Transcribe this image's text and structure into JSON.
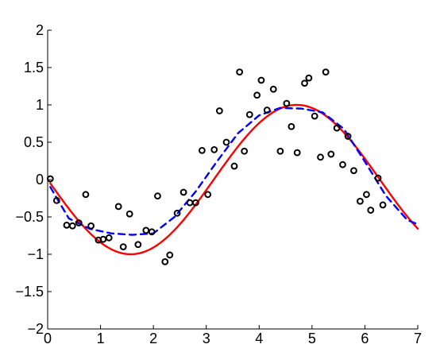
{
  "chart_data": {
    "type": "scatter",
    "xlim": [
      0,
      7
    ],
    "ylim": [
      -2,
      2
    ],
    "x_ticks": [
      "0",
      "1",
      "2",
      "3",
      "4",
      "5",
      "6",
      "7"
    ],
    "y_ticks": [
      "2",
      "1.5",
      "1",
      "0.5",
      "0",
      "−0.5",
      "−1",
      "−1.5",
      "−2"
    ],
    "grid": false,
    "series": [
      {
        "kind": "scatter",
        "color": "#000000",
        "marker": "open-circle",
        "points": [
          [
            0.05,
            0.01
          ],
          [
            0.17,
            -0.28
          ],
          [
            0.36,
            -0.61
          ],
          [
            0.47,
            -0.62
          ],
          [
            0.59,
            -0.58
          ],
          [
            0.72,
            -0.2
          ],
          [
            0.82,
            -0.62
          ],
          [
            0.96,
            -0.81
          ],
          [
            1.05,
            -0.8
          ],
          [
            1.16,
            -0.78
          ],
          [
            1.34,
            -0.36
          ],
          [
            1.43,
            -0.9
          ],
          [
            1.55,
            -0.46
          ],
          [
            1.71,
            -0.87
          ],
          [
            1.86,
            -0.68
          ],
          [
            1.97,
            -0.7
          ],
          [
            2.08,
            -0.22
          ],
          [
            2.22,
            -1.1
          ],
          [
            2.31,
            -1.01
          ],
          [
            2.45,
            -0.45
          ],
          [
            2.57,
            -0.17
          ],
          [
            2.69,
            -0.31
          ],
          [
            2.8,
            -0.31
          ],
          [
            2.92,
            0.39
          ],
          [
            3.03,
            -0.2
          ],
          [
            3.15,
            0.4
          ],
          [
            3.25,
            0.92
          ],
          [
            3.38,
            0.5
          ],
          [
            3.53,
            0.18
          ],
          [
            3.63,
            1.44
          ],
          [
            3.72,
            0.38
          ],
          [
            3.82,
            0.87
          ],
          [
            3.96,
            1.13
          ],
          [
            4.04,
            1.33
          ],
          [
            4.15,
            0.93
          ],
          [
            4.27,
            1.21
          ],
          [
            4.4,
            0.38
          ],
          [
            4.52,
            1.02
          ],
          [
            4.61,
            0.71
          ],
          [
            4.72,
            0.36
          ],
          [
            4.86,
            1.29
          ],
          [
            4.94,
            1.36
          ],
          [
            5.05,
            0.85
          ],
          [
            5.16,
            0.3
          ],
          [
            5.26,
            1.44
          ],
          [
            5.36,
            0.34
          ],
          [
            5.47,
            0.69
          ],
          [
            5.58,
            0.2
          ],
          [
            5.68,
            0.58
          ],
          [
            5.79,
            0.12
          ],
          [
            5.91,
            -0.29
          ],
          [
            6.03,
            -0.2
          ],
          [
            6.11,
            -0.41
          ],
          [
            6.25,
            0.02
          ],
          [
            6.34,
            -0.34
          ]
        ]
      },
      {
        "kind": "line",
        "color": "#ff0000",
        "style": "solid",
        "function": "sin",
        "x_range": [
          0.05,
          7
        ],
        "points": []
      },
      {
        "kind": "line",
        "color": "#0000ff",
        "style": "dashed",
        "function": "fit",
        "x_range": [
          0.05,
          7
        ],
        "points": [
          [
            0.05,
            -0.1
          ],
          [
            0.4,
            -0.52
          ],
          [
            0.8,
            -0.66
          ],
          [
            1.2,
            -0.72
          ],
          [
            1.6,
            -0.74
          ],
          [
            2.0,
            -0.72
          ],
          [
            2.4,
            -0.5
          ],
          [
            2.8,
            -0.16
          ],
          [
            3.2,
            0.24
          ],
          [
            3.6,
            0.62
          ],
          [
            4.0,
            0.86
          ],
          [
            4.4,
            0.96
          ],
          [
            4.8,
            0.95
          ],
          [
            5.2,
            0.9
          ],
          [
            5.6,
            0.68
          ],
          [
            6.0,
            0.24
          ],
          [
            6.4,
            -0.22
          ],
          [
            6.8,
            -0.54
          ],
          [
            7.0,
            -0.6
          ]
        ]
      }
    ]
  }
}
